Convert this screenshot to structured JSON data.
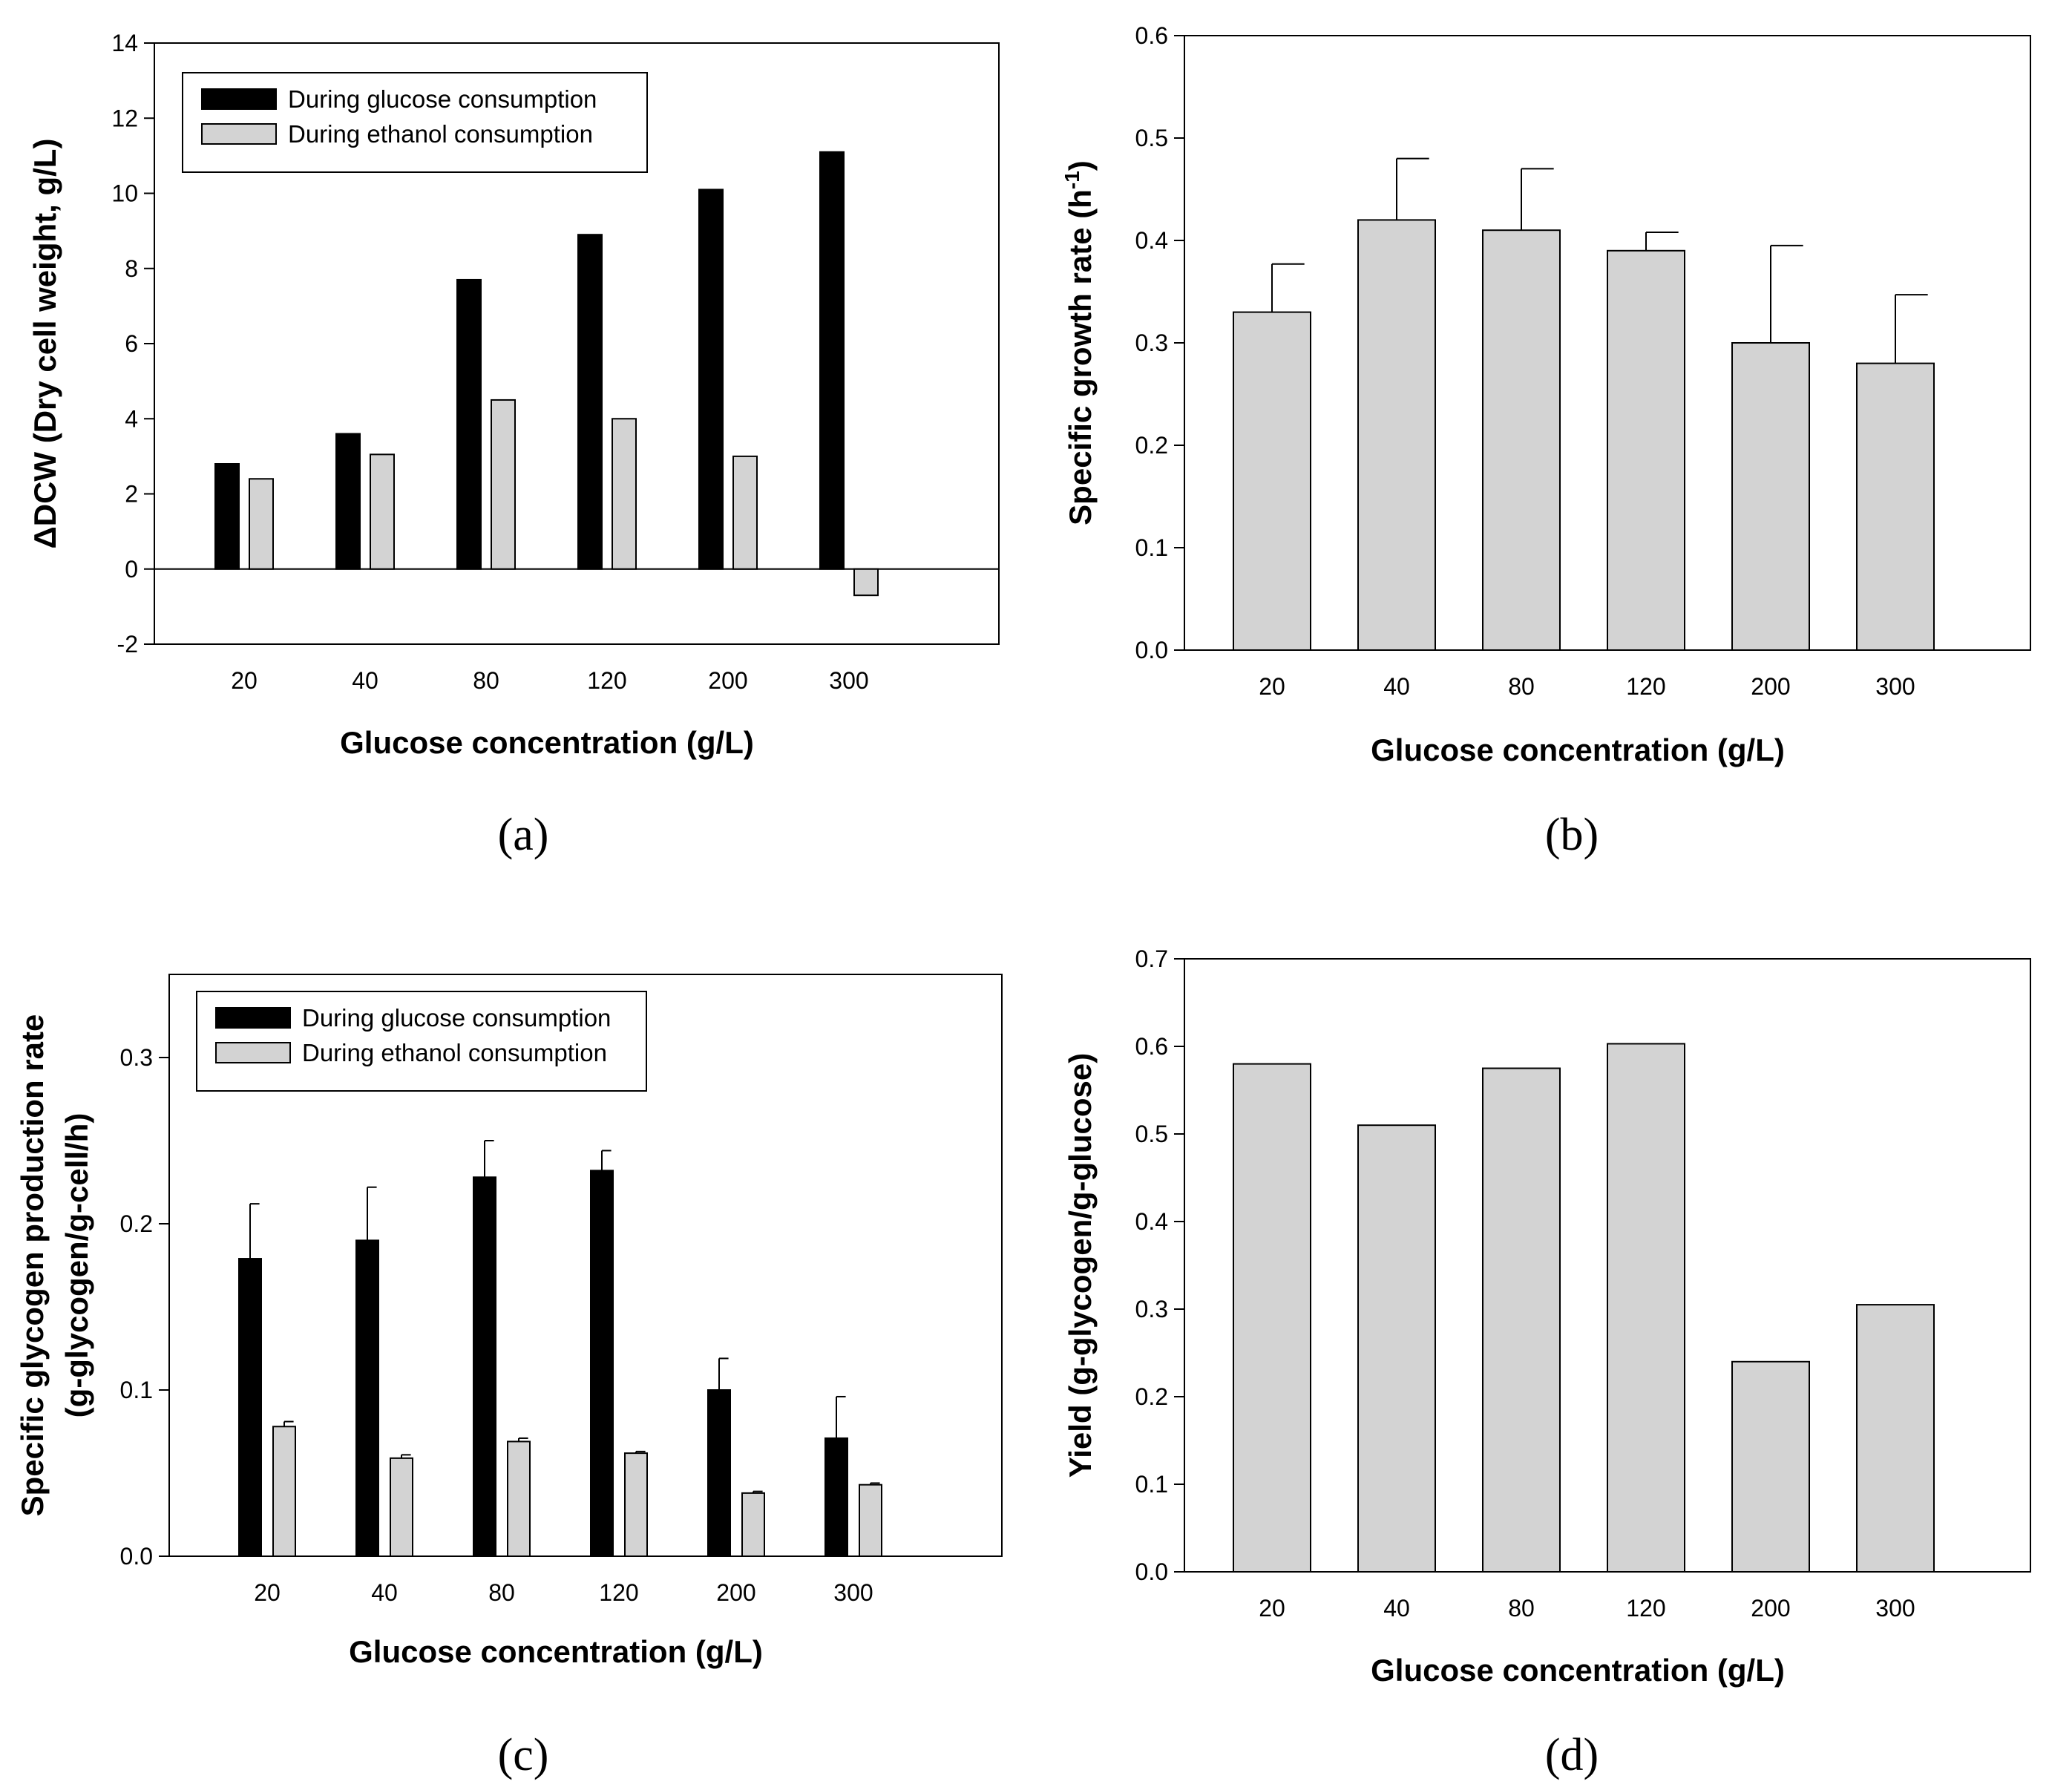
{
  "chart_data": [
    {
      "id": "a",
      "type": "bar",
      "panel_label": "(a)",
      "title": "",
      "xlabel": "Glucose concentration (g/L)",
      "ylabel": "ΔDCW (Dry cell weight, g/L)",
      "ylim": [
        -2,
        14
      ],
      "yticks": [
        -2,
        0,
        2,
        4,
        6,
        8,
        10,
        12,
        14
      ],
      "ytick_labels": [
        "-2",
        "0",
        "2",
        "4",
        "6",
        "8",
        "10",
        "12",
        "14"
      ],
      "grid": false,
      "legend_position": "top-left",
      "categories": [
        "20",
        "40",
        "80",
        "120",
        "200",
        "300"
      ],
      "series": [
        {
          "name": "During glucose consumption",
          "color": "#000000",
          "values": [
            2.8,
            3.6,
            7.7,
            8.9,
            10.1,
            11.1
          ]
        },
        {
          "name": "During ethanol consumption",
          "color": "#d3d3d3",
          "values": [
            2.4,
            3.05,
            4.5,
            4.0,
            3.0,
            -0.7
          ]
        }
      ]
    },
    {
      "id": "b",
      "type": "bar",
      "panel_label": "(b)",
      "title": "",
      "xlabel": "Glucose concentration (g/L)",
      "ylabel": "Specific growth rate (h",
      "ylabel_superscript": "-1",
      "ylabel_suffix": ")",
      "ylim": [
        0,
        0.6
      ],
      "yticks": [
        0,
        0.1,
        0.2,
        0.3,
        0.4,
        0.5,
        0.6
      ],
      "ytick_labels": [
        "0.0",
        "0.1",
        "0.2",
        "0.3",
        "0.4",
        "0.5",
        "0.6"
      ],
      "grid": false,
      "categories": [
        "20",
        "40",
        "80",
        "120",
        "200",
        "300"
      ],
      "series": [
        {
          "name": "Specific growth rate",
          "color": "#d3d3d3",
          "values": [
            0.33,
            0.42,
            0.41,
            0.39,
            0.3,
            0.28
          ],
          "errors": [
            0.047,
            0.06,
            0.06,
            0.018,
            0.095,
            0.067
          ]
        }
      ]
    },
    {
      "id": "c",
      "type": "bar",
      "panel_label": "(c)",
      "title": "",
      "xlabel": "Glucose concentration (g/L)",
      "ylabel": "Specific glycogen production rate",
      "ylabel_line2": "(g-glycogen/g-cell/h)",
      "ylim": [
        0,
        0.35
      ],
      "yticks": [
        0,
        0.1,
        0.2,
        0.3
      ],
      "ytick_labels": [
        "0.0",
        "0.1",
        "0.2",
        "0.3"
      ],
      "grid": false,
      "legend_position": "top-left",
      "categories": [
        "20",
        "40",
        "80",
        "120",
        "200",
        "300"
      ],
      "series": [
        {
          "name": "During glucose consumption",
          "color": "#000000",
          "values": [
            0.179,
            0.19,
            0.228,
            0.232,
            0.1,
            0.071
          ],
          "errors": [
            0.033,
            0.032,
            0.022,
            0.012,
            0.019,
            0.025
          ]
        },
        {
          "name": "During ethanol consumption",
          "color": "#d3d3d3",
          "values": [
            0.078,
            0.059,
            0.069,
            0.062,
            0.038,
            0.043
          ],
          "errors": [
            0.003,
            0.002,
            0.002,
            0.001,
            0.001,
            0.001
          ]
        }
      ]
    },
    {
      "id": "d",
      "type": "bar",
      "panel_label": "(d)",
      "title": "",
      "xlabel": "Glucose concentration (g/L)",
      "ylabel": "Yield (g-glycogen/g-glucose)",
      "ylim": [
        0,
        0.7
      ],
      "yticks": [
        0,
        0.1,
        0.2,
        0.3,
        0.4,
        0.5,
        0.6,
        0.7
      ],
      "ytick_labels": [
        "0.0",
        "0.1",
        "0.2",
        "0.3",
        "0.4",
        "0.5",
        "0.6",
        "0.7"
      ],
      "grid": false,
      "categories": [
        "20",
        "40",
        "80",
        "120",
        "200",
        "300"
      ],
      "series": [
        {
          "name": "Yield",
          "color": "#d3d3d3",
          "values": [
            0.58,
            0.51,
            0.575,
            0.603,
            0.24,
            0.305
          ]
        }
      ]
    }
  ]
}
